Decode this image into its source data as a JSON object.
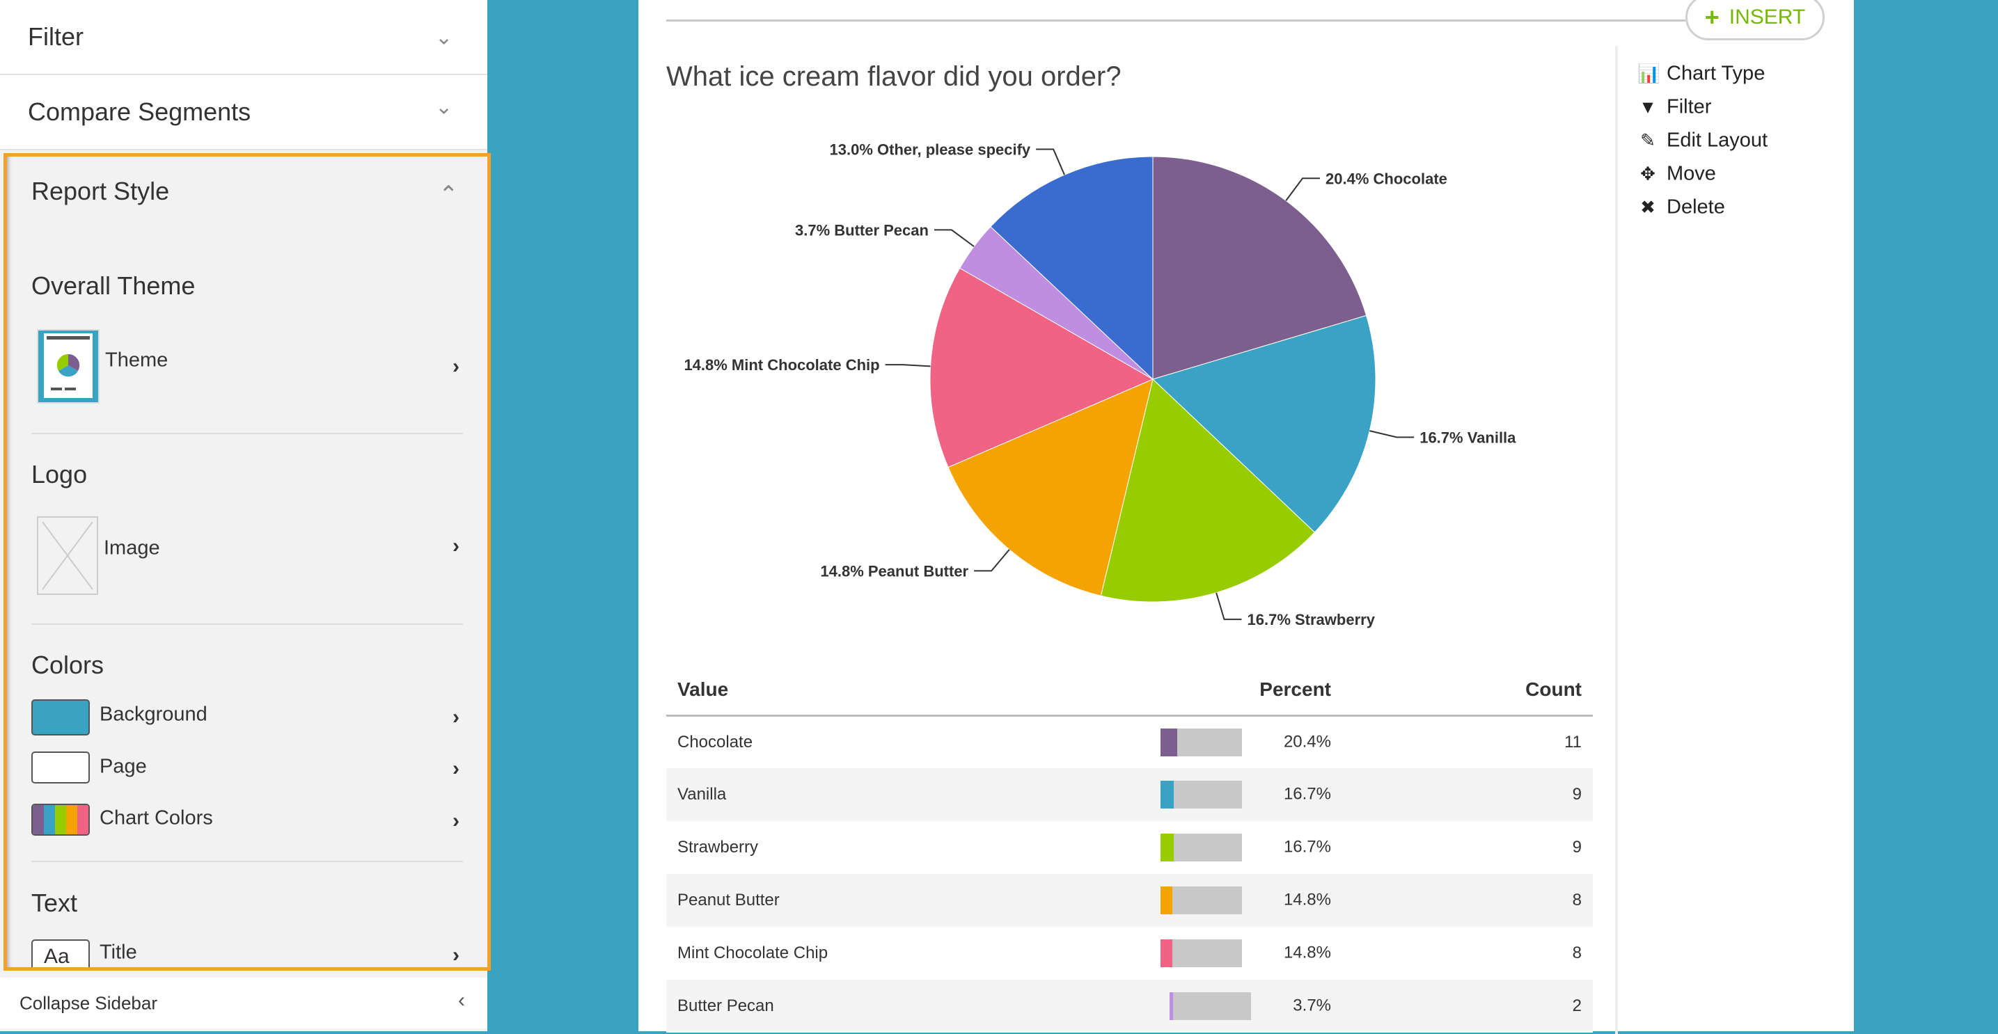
{
  "sidebar": {
    "filter": "Filter",
    "compare": "Compare Segments",
    "report_style": "Report Style",
    "overall_theme": "Overall Theme",
    "theme": "Theme",
    "logo": "Logo",
    "image": "Image",
    "colors": "Colors",
    "background": "Background",
    "page": "Page",
    "chart_colors": "Chart Colors",
    "text": "Text",
    "title": "Title",
    "title_swatch": "Aa",
    "collapse": "Collapse Sidebar",
    "background_color": "#3aa3c2",
    "page_color": "#ffffff"
  },
  "insert": "INSERT",
  "menu": [
    "Chart Type",
    "Filter",
    "Edit Layout",
    "Move",
    "Delete"
  ],
  "question": "What ice cream flavor did you order?",
  "table": {
    "headers": [
      "Value",
      "Percent",
      "Count"
    ],
    "rows": [
      [
        "Chocolate",
        "20.4%",
        "11"
      ],
      [
        "Vanilla",
        "16.7%",
        "9"
      ],
      [
        "Strawberry",
        "16.7%",
        "9"
      ],
      [
        "Peanut Butter",
        "14.8%",
        "8"
      ],
      [
        "Mint Chocolate Chip",
        "14.8%",
        "8"
      ],
      [
        "Butter Pecan",
        "3.7%",
        "2"
      ]
    ]
  },
  "chart_data": {
    "type": "pie",
    "title": "What ice cream flavor did you order?",
    "categories": [
      "Chocolate",
      "Vanilla",
      "Strawberry",
      "Peanut Butter",
      "Mint Chocolate Chip",
      "Butter Pecan",
      "Other, please specify"
    ],
    "values": [
      20.4,
      16.7,
      16.7,
      14.8,
      14.8,
      3.7,
      13.0
    ],
    "labels": [
      "20.4% Chocolate",
      "16.7% Vanilla",
      "16.7% Strawberry",
      "14.8% Peanut Butter",
      "14.8% Mint Chocolate Chip",
      "3.7% Butter Pecan",
      "13.0% Other, please specify"
    ],
    "colors": [
      "#7d5f8f",
      "#3aa3c5",
      "#96cc00",
      "#f5a300",
      "#f06385",
      "#c08ee0",
      "#3a6bcf"
    ]
  }
}
